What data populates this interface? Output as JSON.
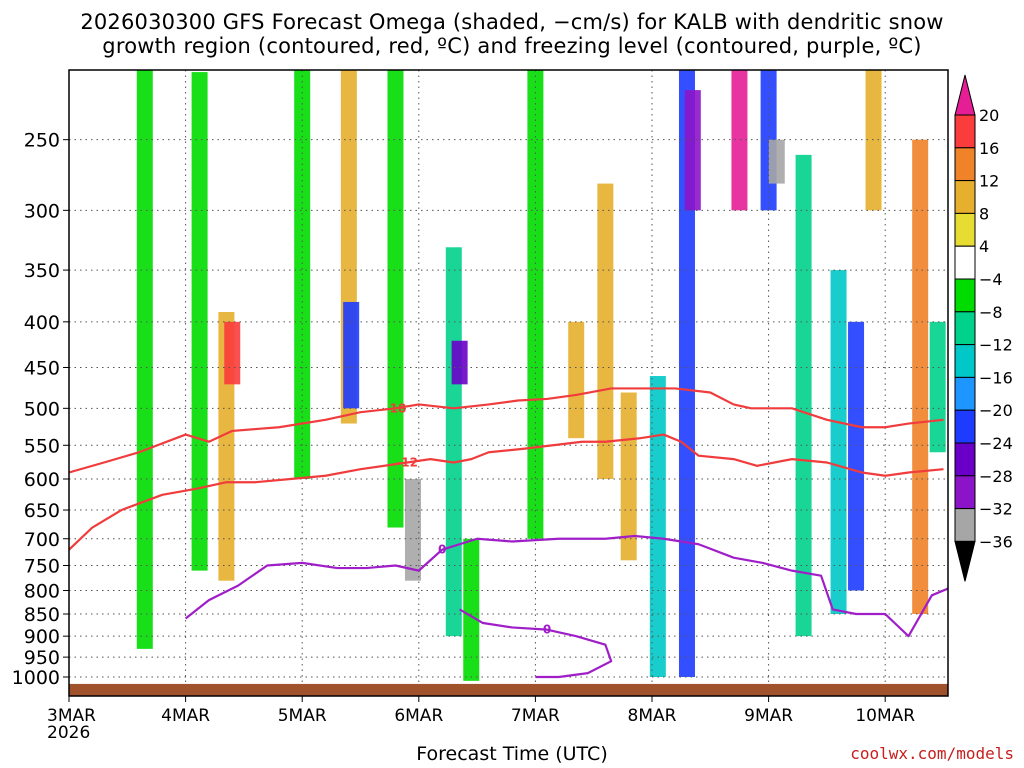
{
  "title_line1": "2026030300 GFS Forecast Omega (shaded, −cm/s) for KALB with dendritic snow",
  "title_line2": "growth region (contoured, red, ºC) and freezing level (contoured, purple, ºC)",
  "credit": "coolwx.com/models",
  "chart_data": {
    "type": "heatmap",
    "title": "2026030300 GFS Forecast Omega (shaded, −cm/s) for KALB with dendritic snow growth region (contoured, red, ºC) and freezing level (contoured, purple, ºC)",
    "xlabel": "Forecast Time (UTC)",
    "ylabel": "",
    "x_range_days": [
      0,
      7.6
    ],
    "y_range_hpa": [
      200,
      1025
    ],
    "x_ticks": [
      {
        "day": 0,
        "label": "3MAR",
        "sublabel": "2026"
      },
      {
        "day": 1,
        "label": "4MAR"
      },
      {
        "day": 2,
        "label": "5MAR"
      },
      {
        "day": 3,
        "label": "6MAR"
      },
      {
        "day": 4,
        "label": "7MAR"
      },
      {
        "day": 5,
        "label": "8MAR"
      },
      {
        "day": 6,
        "label": "9MAR"
      },
      {
        "day": 7,
        "label": "10MAR"
      }
    ],
    "y_ticks": [
      250,
      300,
      350,
      400,
      450,
      500,
      550,
      600,
      650,
      700,
      750,
      800,
      850,
      900,
      950,
      1000
    ],
    "colorbar": {
      "boundaries": [
        -36,
        -32,
        -28,
        -24,
        -20,
        -16,
        -12,
        -8,
        -4,
        4,
        8,
        12,
        16,
        20
      ],
      "colors": [
        "#000000",
        "#a6a6a6",
        "#8c14c8",
        "#6a00c8",
        "#1e3cff",
        "#1e96ff",
        "#00c8c8",
        "#00d28c",
        "#00dc00",
        "#ffffff",
        "#e6dc32",
        "#e6af2d",
        "#f08228",
        "#fa3c3c",
        "#e61e96"
      ]
    },
    "omega_features": [
      {
        "day": 0.65,
        "p_top": 200,
        "p_bot": 930,
        "omega": -8
      },
      {
        "day": 1.12,
        "p_top": 210,
        "p_bot": 760,
        "omega": -8
      },
      {
        "day": 1.35,
        "p_top": 390,
        "p_bot": 780,
        "omega": 10
      },
      {
        "day": 1.4,
        "p_top": 400,
        "p_bot": 470,
        "omega": 16
      },
      {
        "day": 2.0,
        "p_top": 200,
        "p_bot": 600,
        "omega": -6
      },
      {
        "day": 2.4,
        "p_top": 200,
        "p_bot": 520,
        "omega": 8
      },
      {
        "day": 2.42,
        "p_top": 380,
        "p_bot": 500,
        "omega": -24
      },
      {
        "day": 2.8,
        "p_top": 200,
        "p_bot": 680,
        "omega": -8
      },
      {
        "day": 2.95,
        "p_top": 600,
        "p_bot": 780,
        "omega": -36
      },
      {
        "day": 3.3,
        "p_top": 330,
        "p_bot": 900,
        "omega": -12
      },
      {
        "day": 3.35,
        "p_top": 420,
        "p_bot": 470,
        "omega": -28
      },
      {
        "day": 3.45,
        "p_top": 700,
        "p_bot": 1010,
        "omega": -8
      },
      {
        "day": 4.0,
        "p_top": 200,
        "p_bot": 700,
        "omega": -6
      },
      {
        "day": 4.35,
        "p_top": 400,
        "p_bot": 540,
        "omega": 8
      },
      {
        "day": 4.6,
        "p_top": 280,
        "p_bot": 600,
        "omega": 10
      },
      {
        "day": 4.8,
        "p_top": 480,
        "p_bot": 740,
        "omega": 8
      },
      {
        "day": 5.05,
        "p_top": 460,
        "p_bot": 1000,
        "omega": -14
      },
      {
        "day": 5.3,
        "p_top": 200,
        "p_bot": 1000,
        "omega": -22
      },
      {
        "day": 5.35,
        "p_top": 220,
        "p_bot": 300,
        "omega": -30
      },
      {
        "day": 5.75,
        "p_top": 200,
        "p_bot": 300,
        "omega": 20
      },
      {
        "day": 6.0,
        "p_top": 200,
        "p_bot": 300,
        "omega": -24
      },
      {
        "day": 6.07,
        "p_top": 250,
        "p_bot": 280,
        "omega": -34
      },
      {
        "day": 6.3,
        "p_top": 260,
        "p_bot": 900,
        "omega": -10
      },
      {
        "day": 6.6,
        "p_top": 350,
        "p_bot": 850,
        "omega": -16
      },
      {
        "day": 6.75,
        "p_top": 400,
        "p_bot": 800,
        "omega": -24
      },
      {
        "day": 6.9,
        "p_top": 200,
        "p_bot": 300,
        "omega": 8
      },
      {
        "day": 7.3,
        "p_top": 250,
        "p_bot": 850,
        "omega": 12
      },
      {
        "day": 7.45,
        "p_top": 400,
        "p_bot": 560,
        "omega": -10
      }
    ],
    "contours": [
      {
        "label": "-18",
        "color": "#f03c3c",
        "points": [
          [
            0.0,
            590
          ],
          [
            0.3,
            575
          ],
          [
            0.6,
            560
          ],
          [
            1.0,
            535
          ],
          [
            1.2,
            545
          ],
          [
            1.4,
            530
          ],
          [
            1.8,
            525
          ],
          [
            2.2,
            515
          ],
          [
            2.5,
            505
          ],
          [
            2.8,
            500
          ],
          [
            3.0,
            495
          ],
          [
            3.3,
            500
          ],
          [
            3.6,
            495
          ],
          [
            3.85,
            490
          ],
          [
            4.1,
            488
          ],
          [
            4.35,
            483
          ],
          [
            4.65,
            475
          ],
          [
            4.9,
            475
          ],
          [
            5.2,
            475
          ],
          [
            5.5,
            480
          ],
          [
            5.7,
            495
          ],
          [
            5.85,
            500
          ],
          [
            6.2,
            500
          ],
          [
            6.5,
            515
          ],
          [
            6.8,
            525
          ],
          [
            7.0,
            525
          ],
          [
            7.2,
            520
          ],
          [
            7.5,
            515
          ]
        ]
      },
      {
        "label": "-12",
        "color": "#f03c3c",
        "points": [
          [
            0.0,
            720
          ],
          [
            0.2,
            680
          ],
          [
            0.45,
            650
          ],
          [
            0.8,
            625
          ],
          [
            1.1,
            615
          ],
          [
            1.35,
            605
          ],
          [
            1.6,
            605
          ],
          [
            1.9,
            600
          ],
          [
            2.2,
            595
          ],
          [
            2.5,
            585
          ],
          [
            2.9,
            575
          ],
          [
            3.1,
            570
          ],
          [
            3.3,
            575
          ],
          [
            3.45,
            570
          ],
          [
            3.6,
            560
          ],
          [
            3.9,
            555
          ],
          [
            4.15,
            550
          ],
          [
            4.4,
            545
          ],
          [
            4.6,
            545
          ],
          [
            4.9,
            540
          ],
          [
            5.1,
            535
          ],
          [
            5.25,
            545
          ],
          [
            5.4,
            565
          ],
          [
            5.7,
            570
          ],
          [
            5.9,
            580
          ],
          [
            6.2,
            570
          ],
          [
            6.5,
            575
          ],
          [
            6.8,
            590
          ],
          [
            7.0,
            595
          ],
          [
            7.2,
            590
          ],
          [
            7.5,
            585
          ]
        ]
      },
      {
        "label": "0",
        "color": "#a01ec8",
        "points": [
          [
            1.0,
            860
          ],
          [
            1.2,
            820
          ],
          [
            1.45,
            790
          ],
          [
            1.7,
            750
          ],
          [
            2.0,
            745
          ],
          [
            2.3,
            755
          ],
          [
            2.55,
            755
          ],
          [
            2.8,
            750
          ],
          [
            3.0,
            760
          ],
          [
            3.2,
            720
          ],
          [
            3.5,
            700
          ],
          [
            3.8,
            705
          ],
          [
            4.2,
            700
          ],
          [
            4.6,
            700
          ],
          [
            4.85,
            695
          ],
          [
            5.1,
            700
          ],
          [
            5.4,
            710
          ],
          [
            5.7,
            735
          ],
          [
            5.95,
            745
          ],
          [
            6.2,
            760
          ],
          [
            6.45,
            770
          ],
          [
            6.55,
            840
          ],
          [
            6.75,
            850
          ],
          [
            7.0,
            850
          ],
          [
            7.2,
            900
          ],
          [
            7.4,
            810
          ],
          [
            7.6,
            790
          ]
        ]
      },
      {
        "label": "0",
        "color": "#a01ec8",
        "points": [
          [
            3.35,
            840
          ],
          [
            3.55,
            870
          ],
          [
            3.8,
            880
          ],
          [
            4.1,
            885
          ],
          [
            4.35,
            900
          ],
          [
            4.6,
            920
          ],
          [
            4.65,
            960
          ],
          [
            4.45,
            990
          ],
          [
            4.2,
            1000
          ],
          [
            4.0,
            1000
          ]
        ]
      }
    ],
    "surface": {
      "p": 1018,
      "color": "#a0522d"
    }
  }
}
